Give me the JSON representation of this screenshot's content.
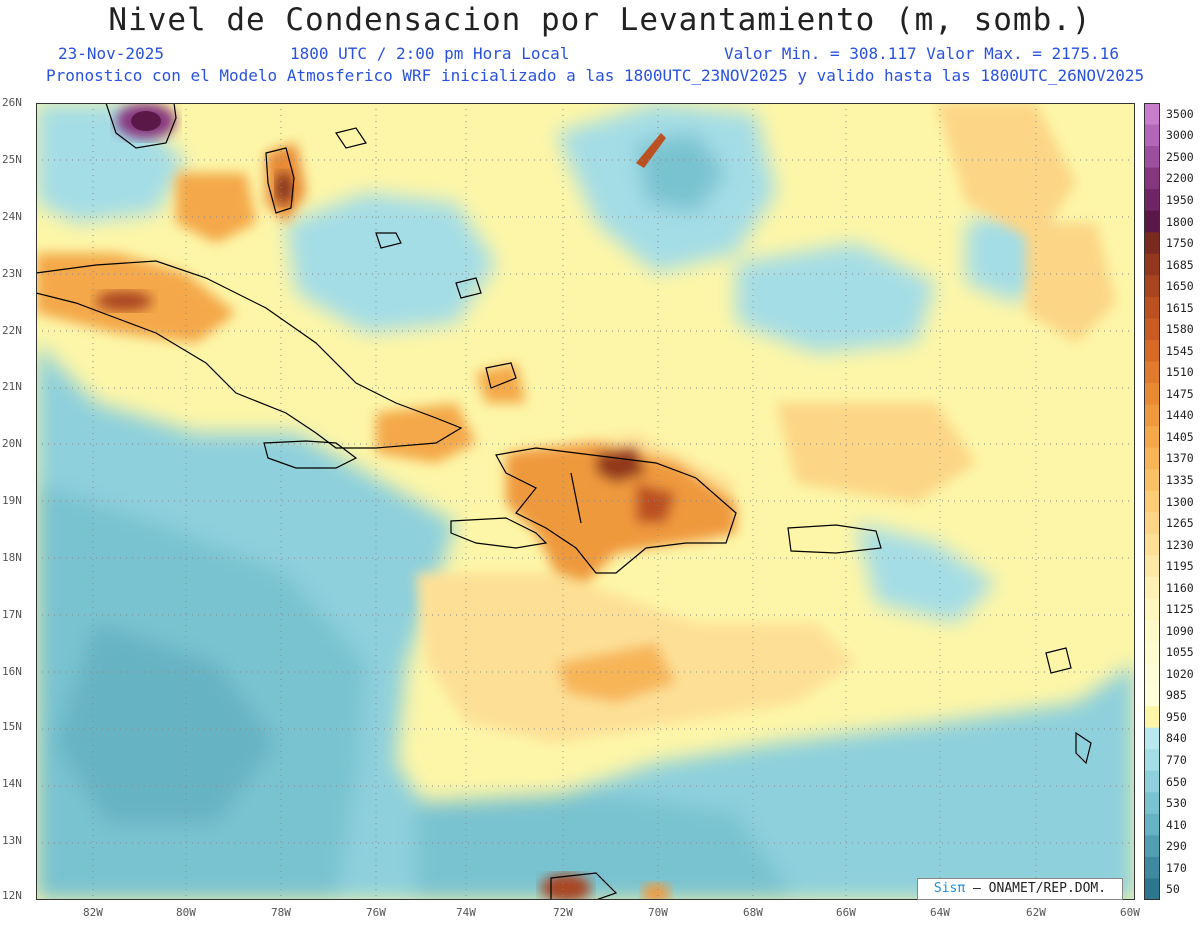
{
  "header": {
    "title": "Nivel de Condensacion por Levantamiento (m, somb.)",
    "date": "23-Nov-2025",
    "time": "1800 UTC / 2:00 pm Hora Local",
    "minmax": "Valor Min. = 308.117  Valor Max. = 2175.16",
    "forecast": "Pronostico con el Modelo Atmosferico WRF inicializado a las 1800UTC_23NOV2025 y valido hasta las  1800UTC_26NOV2025"
  },
  "axes": {
    "lat_labels": [
      "26N",
      "25N",
      "24N",
      "23N",
      "22N",
      "21N",
      "20N",
      "19N",
      "18N",
      "17N",
      "16N",
      "15N",
      "14N",
      "13N",
      "12N"
    ],
    "lon_labels": [
      "82W",
      "80W",
      "78W",
      "76W",
      "74W",
      "72W",
      "70W",
      "68W",
      "66W",
      "64W",
      "62W",
      "60W"
    ]
  },
  "colorbar": {
    "labels": [
      "3500",
      "3000",
      "2500",
      "2200",
      "1950",
      "1800",
      "1750",
      "1685",
      "1650",
      "1615",
      "1580",
      "1545",
      "1510",
      "1475",
      "1440",
      "1405",
      "1370",
      "1335",
      "1300",
      "1265",
      "1230",
      "1195",
      "1160",
      "1125",
      "1090",
      "1055",
      "1020",
      "985",
      "950",
      "840",
      "770",
      "650",
      "530",
      "410",
      "290",
      "170",
      "50"
    ],
    "colors": [
      "#c77dc9",
      "#b466b8",
      "#9c4f9e",
      "#86367f",
      "#6f2466",
      "#5a1848",
      "#7a2a1e",
      "#93381f",
      "#a94420",
      "#bb5020",
      "#c95c22",
      "#d66a26",
      "#e07a2c",
      "#e88a34",
      "#ef993e",
      "#f4a84a",
      "#f7b558",
      "#f9c166",
      "#fbcc76",
      "#fcd686",
      "#fde096",
      "#fee8a6",
      "#fff0b4",
      "#fff6c0",
      "#fffac8",
      "#fffcd0",
      "#fffed8",
      "#ffffdc",
      "#fdf6a8",
      "#b9e8ee",
      "#a4dde6",
      "#8ed0dc",
      "#79c2d0",
      "#66b3c4",
      "#529fb3",
      "#3f8aa0",
      "#2d7690"
    ]
  },
  "credit": {
    "brand": "Sisπ",
    "text": "– ONAMET/REP.DOM."
  },
  "colors": {
    "title_blue": "#2a52e0",
    "moist_teal": "#7cc3cf",
    "pale_yellow": "#fdf6a8",
    "orange": "#e8a04a",
    "brown": "#b4632a",
    "purple": "#7a2e6a"
  }
}
